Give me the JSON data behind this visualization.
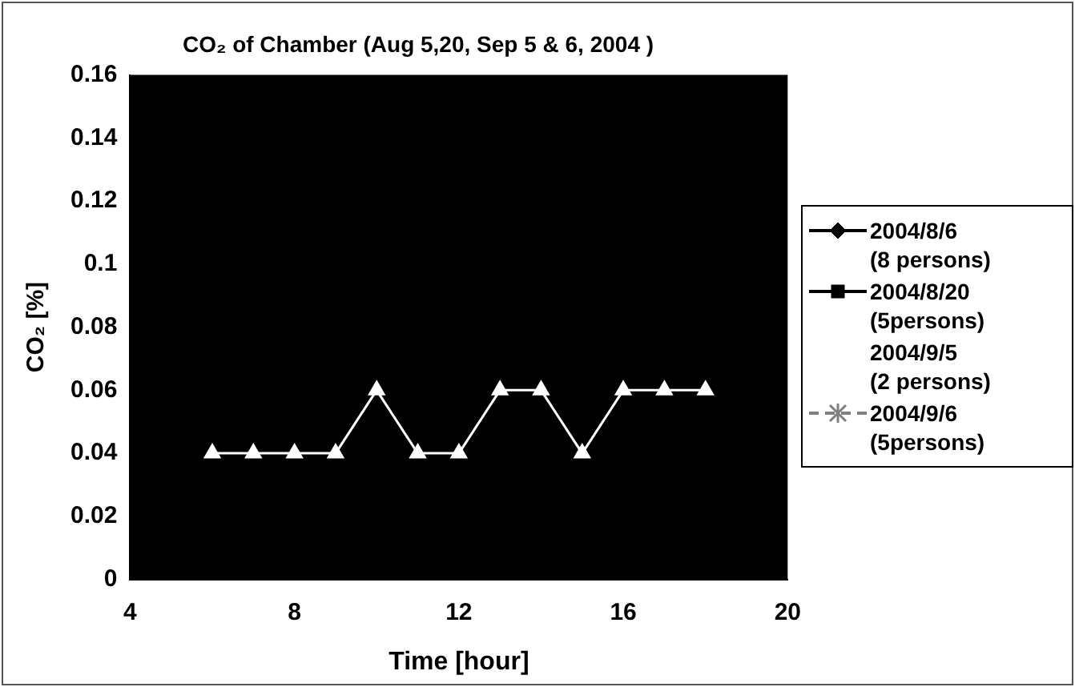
{
  "chart_data": {
    "type": "line",
    "title": "CO₂ of Chamber (Aug 5,20, Sep 5 & 6, 2004 )",
    "xlabel": "Time [hour]",
    "ylabel": "CO₂ [%]",
    "xlim": [
      4,
      20
    ],
    "xticks": [
      4,
      8,
      12,
      16,
      20
    ],
    "ylim": [
      0,
      0.16
    ],
    "yticks": [
      0,
      0.02,
      0.04,
      0.06,
      0.08,
      0.1,
      0.12,
      0.14,
      0.16
    ],
    "grid": false,
    "legend": "right",
    "series": [
      {
        "name": "2004/8/6 (8 persons)",
        "color": "#000000",
        "marker": "diamond",
        "line_style": "solid"
      },
      {
        "name": "2004/8/20 (5persons)",
        "color": "#000000",
        "marker": "square",
        "line_style": "solid"
      },
      {
        "name": "2004/9/5 (2 persons)",
        "color": "#ffffff",
        "marker": "triangle",
        "line_style": "solid",
        "x": [
          6,
          7,
          8,
          9,
          10,
          11,
          12,
          13,
          14,
          15,
          16,
          17,
          18
        ],
        "values": [
          0.04,
          0.04,
          0.04,
          0.04,
          0.06,
          0.04,
          0.04,
          0.06,
          0.06,
          0.04,
          0.06,
          0.06,
          0.06
        ]
      },
      {
        "name": "2004/9/6 (5persons)",
        "color": "#808080",
        "marker": "star",
        "line_style": "dashed"
      }
    ]
  }
}
